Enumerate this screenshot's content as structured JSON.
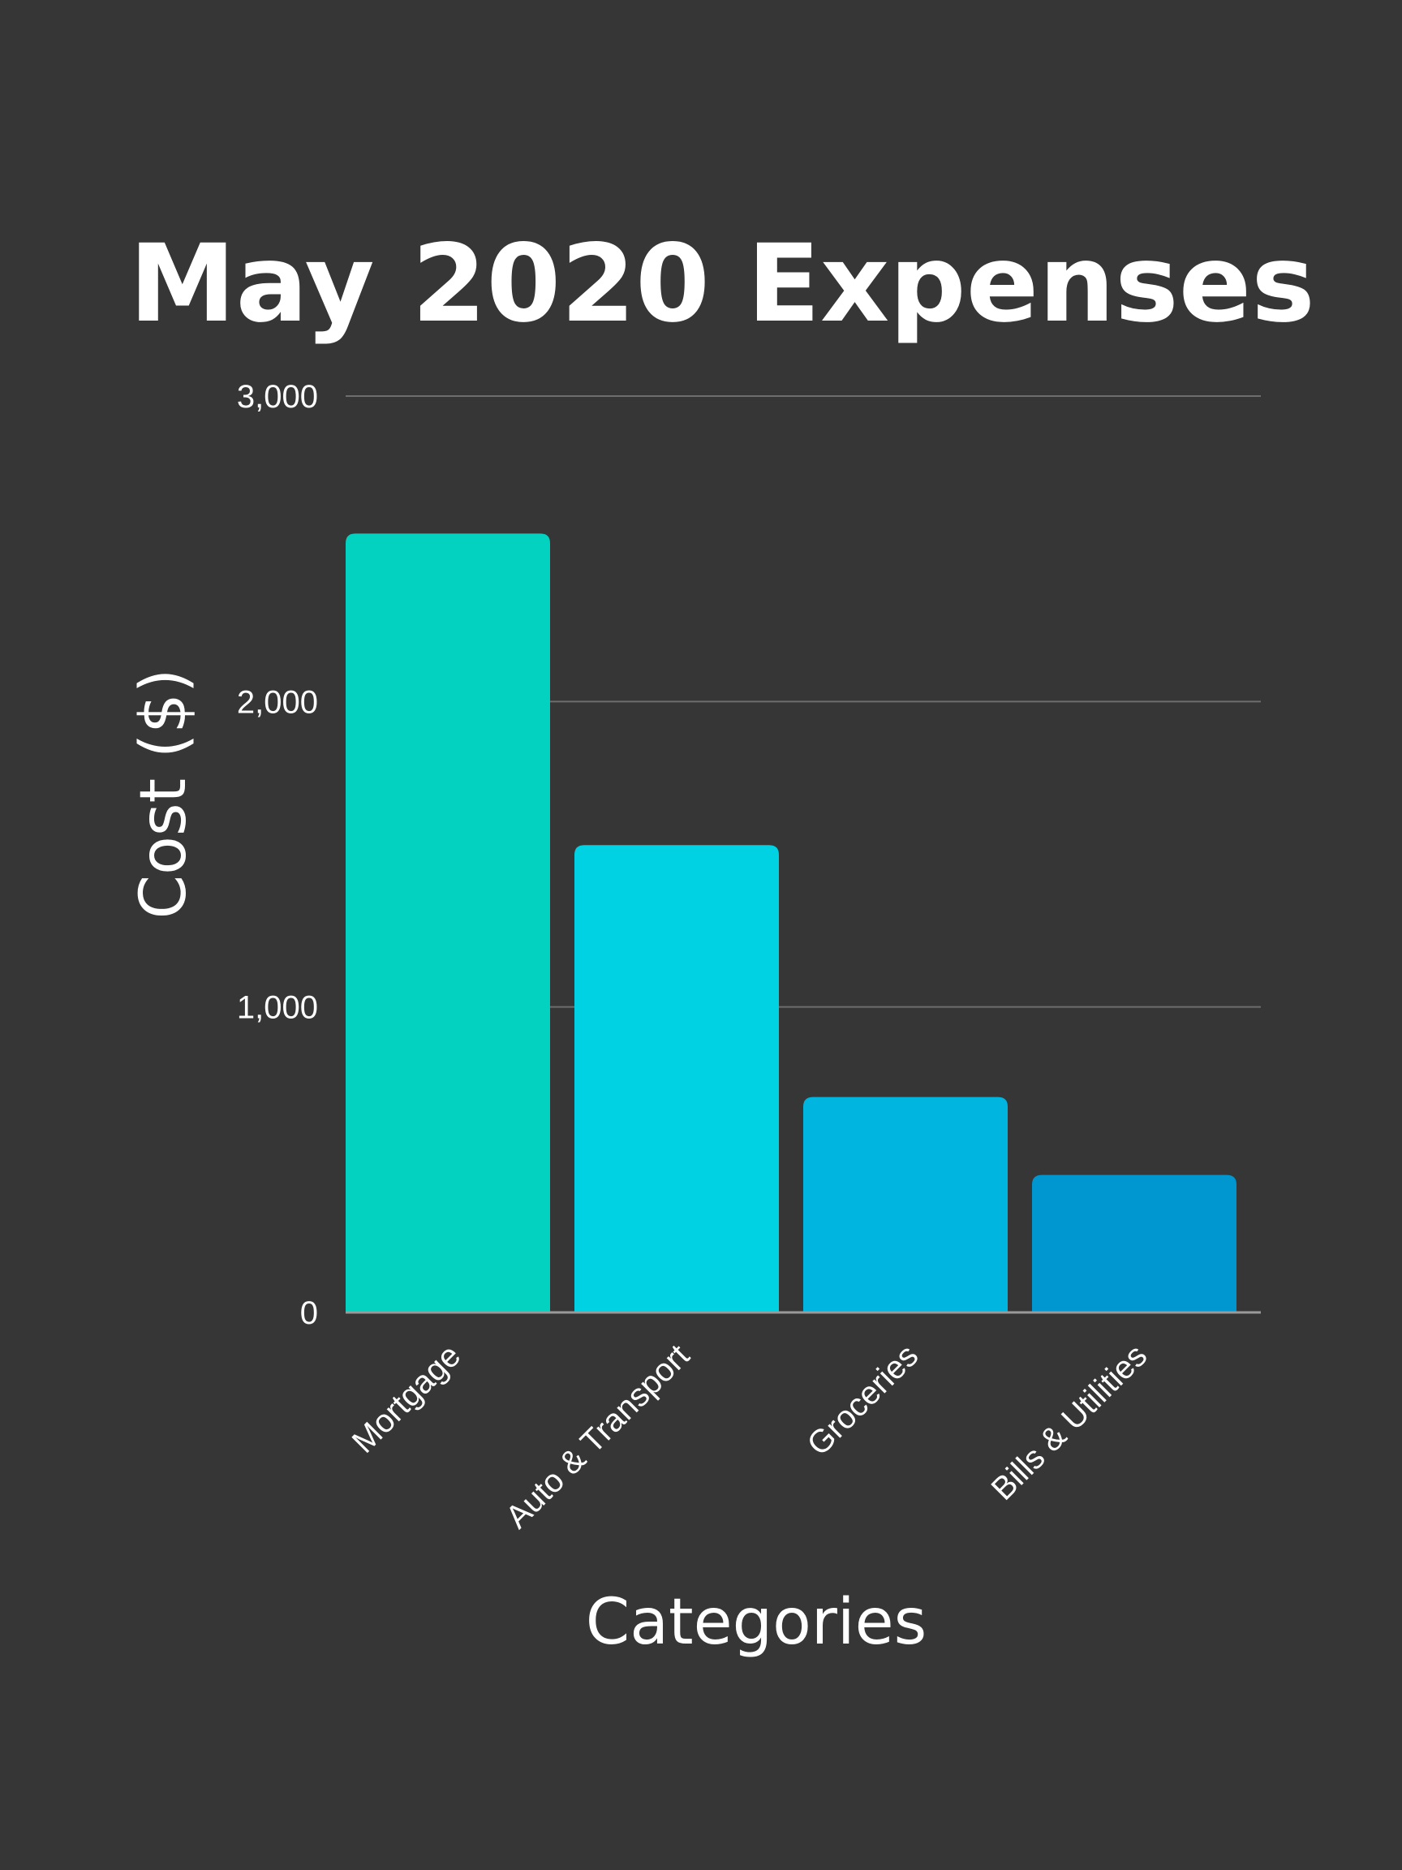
{
  "chart_data": {
    "type": "bar",
    "title": "May 2020 Expenses",
    "xlabel": "Categories",
    "ylabel": "Cost ($)",
    "ylim": [
      0,
      3000
    ],
    "yticks": [
      0,
      1000,
      2000,
      3000
    ],
    "ytick_labels": [
      "0",
      "1,000",
      "2,000",
      "3,000"
    ],
    "grid": true,
    "categories": [
      "Mortgage",
      "Auto & Transport",
      "Groceries",
      "Bills & Utilities"
    ],
    "values": [
      2550,
      1530,
      705,
      450
    ],
    "colors": [
      "#04d2c0",
      "#00d1e3",
      "#00b6e0",
      "#0096d0"
    ]
  }
}
